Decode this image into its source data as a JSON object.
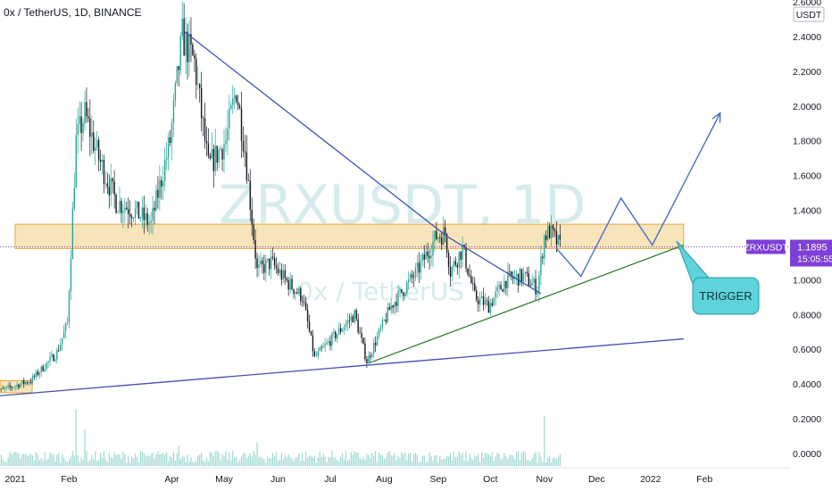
{
  "header": {
    "title": "0x / TetherUS, 1D, BINANCE"
  },
  "watermark": {
    "symbol": "ZRXUSDT, 1D",
    "name": "0x / TetherUS"
  },
  "price_axis": {
    "currency": "USDT"
  },
  "last_price": {
    "symbol": "ZRXUSDT",
    "price": "1.1895",
    "countdown": "15:05:55",
    "value": 1.1895
  },
  "annotations": {
    "trigger": "TRIGGER"
  },
  "colors": {
    "up": "#26a69a",
    "down": "#131722",
    "volume": "#9fd9d2",
    "resistance_zone": "#f7dfae",
    "resistance_border": "#e7a545",
    "trendline_blue": "#3f51b5",
    "trendline_green": "#2e7d32",
    "projection": "#4a6fc4",
    "trigger_box": "#5ed3dc",
    "price_label": "#7e3fd6"
  },
  "chart_data": {
    "type": "candlestick",
    "title": "0x / TetherUS, 1D, BINANCE",
    "x_ticks": [
      "2021",
      "Feb",
      "Apr",
      "May",
      "Jun",
      "Jul",
      "Aug",
      "Sep",
      "Oct",
      "Nov",
      "Dec",
      "2022",
      "Feb"
    ],
    "y_ticks": [
      "0.0000",
      "0.2000",
      "0.4000",
      "0.6000",
      "0.8000",
      "1.0000",
      "1.2000",
      "1.4000",
      "1.6000",
      "1.8000",
      "2.0000",
      "2.2000",
      "2.4000",
      "2.6000"
    ],
    "ylim": [
      0,
      2.6
    ],
    "price_path": [
      {
        "date": "2020-12-20",
        "price": 0.35
      },
      {
        "date": "2021-01-10",
        "price": 0.42
      },
      {
        "date": "2021-01-25",
        "price": 0.58
      },
      {
        "date": "2021-01-31",
        "price": 0.75
      },
      {
        "date": "2021-02-05",
        "price": 1.8
      },
      {
        "date": "2021-02-10",
        "price": 1.95
      },
      {
        "date": "2021-02-18",
        "price": 1.7
      },
      {
        "date": "2021-02-28",
        "price": 1.45
      },
      {
        "date": "2021-03-10",
        "price": 1.4
      },
      {
        "date": "2021-03-20",
        "price": 1.32
      },
      {
        "date": "2021-03-31",
        "price": 1.8
      },
      {
        "date": "2021-04-07",
        "price": 2.4
      },
      {
        "date": "2021-04-14",
        "price": 2.25
      },
      {
        "date": "2021-04-22",
        "price": 1.65
      },
      {
        "date": "2021-05-02",
        "price": 1.8
      },
      {
        "date": "2021-05-08",
        "price": 2.1
      },
      {
        "date": "2021-05-13",
        "price": 1.75
      },
      {
        "date": "2021-05-20",
        "price": 1.05
      },
      {
        "date": "2021-05-28",
        "price": 1.1
      },
      {
        "date": "2021-06-05",
        "price": 1.0
      },
      {
        "date": "2021-06-15",
        "price": 0.9
      },
      {
        "date": "2021-06-22",
        "price": 0.55
      },
      {
        "date": "2021-07-01",
        "price": 0.65
      },
      {
        "date": "2021-07-15",
        "price": 0.8
      },
      {
        "date": "2021-07-22",
        "price": 0.53
      },
      {
        "date": "2021-08-05",
        "price": 0.85
      },
      {
        "date": "2021-08-20",
        "price": 1.05
      },
      {
        "date": "2021-08-31",
        "price": 1.25
      },
      {
        "date": "2021-09-05",
        "price": 1.27
      },
      {
        "date": "2021-09-08",
        "price": 1.05
      },
      {
        "date": "2021-09-15",
        "price": 1.18
      },
      {
        "date": "2021-09-22",
        "price": 0.9
      },
      {
        "date": "2021-09-30",
        "price": 0.85
      },
      {
        "date": "2021-10-10",
        "price": 1.0
      },
      {
        "date": "2021-10-20",
        "price": 1.02
      },
      {
        "date": "2021-10-28",
        "price": 0.95
      },
      {
        "date": "2021-11-01",
        "price": 1.25
      },
      {
        "date": "2021-11-04",
        "price": 1.28
      },
      {
        "date": "2021-11-10",
        "price": 1.19
      }
    ],
    "zone": {
      "from_date": "2021-01-01",
      "to_date": "2022-01-20",
      "low": 1.18,
      "high": 1.32
    },
    "trendlines": [
      {
        "name": "upper-descending",
        "from": {
          "date": "2021-04-08",
          "price": 2.43
        },
        "to": {
          "date": "2021-09-06",
          "price": 1.25
        }
      },
      {
        "name": "apex-descending",
        "from": {
          "date": "2021-09-06",
          "price": 1.25
        },
        "to": {
          "date": "2021-10-30",
          "price": 0.92
        }
      },
      {
        "name": "green-ascending",
        "from": {
          "date": "2021-07-23",
          "price": 0.52
        },
        "to": {
          "date": "2022-01-20",
          "price": 1.2
        }
      },
      {
        "name": "blue-support",
        "from": {
          "date": "2020-12-20",
          "price": 0.33
        },
        "to": {
          "date": "2022-01-20",
          "price": 0.66
        }
      }
    ],
    "projection": [
      {
        "date": "2021-11-08",
        "price": 1.18
      },
      {
        "date": "2021-11-22",
        "price": 1.02
      },
      {
        "date": "2021-12-15",
        "price": 1.47
      },
      {
        "date": "2022-01-02",
        "price": 1.2
      },
      {
        "date": "2022-02-10",
        "price": 1.96
      }
    ],
    "volume_spikes": [
      {
        "date": "2021-02-05",
        "level": 0.85
      },
      {
        "date": "2021-11-01",
        "level": 0.75
      },
      {
        "date": "2021-05-20",
        "level": 0.35
      },
      {
        "date": "2021-04-05",
        "level": 0.3
      },
      {
        "date": "2021-02-10",
        "level": 0.55
      }
    ]
  }
}
